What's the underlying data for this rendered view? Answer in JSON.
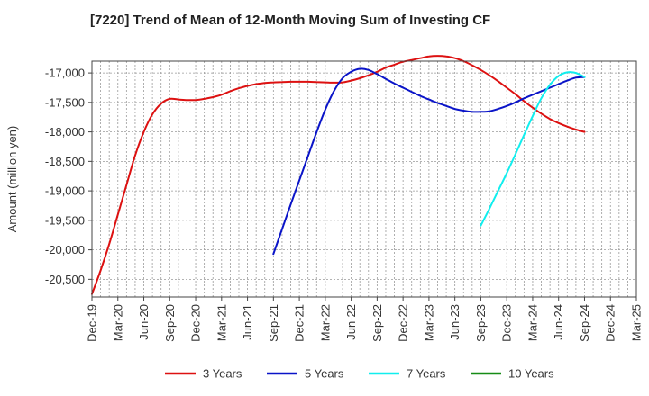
{
  "chart_data": {
    "type": "line",
    "title": "[7220]  Trend of Mean of 12-Month Moving Sum of Investing CF",
    "xlabel": "",
    "ylabel": "Amount (million yen)",
    "ylim": [
      -20800,
      -16800
    ],
    "yticks": [
      -17000,
      -17500,
      -18000,
      -18500,
      -19000,
      -19500,
      -20000,
      -20500
    ],
    "ytick_labels": [
      "-17,000",
      "-17,500",
      "-18,000",
      "-18,500",
      "-19,000",
      "-19,500",
      "-20,000",
      "-20,500"
    ],
    "x_categories": [
      "Dec-19",
      "Mar-20",
      "Jun-20",
      "Sep-20",
      "Dec-20",
      "Mar-21",
      "Jun-21",
      "Sep-21",
      "Dec-21",
      "Mar-22",
      "Jun-22",
      "Sep-22",
      "Dec-22",
      "Mar-23",
      "Jun-23",
      "Sep-23",
      "Dec-23",
      "Mar-24",
      "Jun-24",
      "Sep-24",
      "Dec-24",
      "Mar-25"
    ],
    "grid": true,
    "legend_position": "bottom",
    "series": [
      {
        "name": "3 Years",
        "color": "#dd1111",
        "points": [
          [
            "Dec-19",
            -20750
          ],
          [
            "Jan-20",
            -20350
          ],
          [
            "Feb-20",
            -19900
          ],
          [
            "Mar-20",
            -19400
          ],
          [
            "Apr-20",
            -18900
          ],
          [
            "May-20",
            -18400
          ],
          [
            "Jun-20",
            -18000
          ],
          [
            "Jul-20",
            -17700
          ],
          [
            "Aug-20",
            -17520
          ],
          [
            "Sep-20",
            -17440
          ],
          [
            "Oct-20",
            -17450
          ],
          [
            "Nov-20",
            -17460
          ],
          [
            "Dec-20",
            -17460
          ],
          [
            "Jan-21",
            -17440
          ],
          [
            "Feb-21",
            -17410
          ],
          [
            "Mar-21",
            -17370
          ],
          [
            "Apr-21",
            -17310
          ],
          [
            "May-21",
            -17260
          ],
          [
            "Jun-21",
            -17220
          ],
          [
            "Jul-21",
            -17190
          ],
          [
            "Aug-21",
            -17170
          ],
          [
            "Sep-21",
            -17160
          ],
          [
            "Oct-21",
            -17155
          ],
          [
            "Nov-21",
            -17150
          ],
          [
            "Dec-21",
            -17150
          ],
          [
            "Jan-22",
            -17150
          ],
          [
            "Feb-22",
            -17155
          ],
          [
            "Mar-22",
            -17160
          ],
          [
            "Apr-22",
            -17165
          ],
          [
            "May-22",
            -17160
          ],
          [
            "Jun-22",
            -17130
          ],
          [
            "Jul-22",
            -17090
          ],
          [
            "Aug-22",
            -17040
          ],
          [
            "Sep-22",
            -16980
          ],
          [
            "Oct-22",
            -16910
          ],
          [
            "Nov-22",
            -16860
          ],
          [
            "Dec-22",
            -16810
          ],
          [
            "Jan-23",
            -16780
          ],
          [
            "Feb-23",
            -16750
          ],
          [
            "Mar-23",
            -16720
          ],
          [
            "Apr-23",
            -16710
          ],
          [
            "May-23",
            -16720
          ],
          [
            "Jun-23",
            -16750
          ],
          [
            "Jul-23",
            -16800
          ],
          [
            "Aug-23",
            -16870
          ],
          [
            "Sep-23",
            -16950
          ],
          [
            "Oct-23",
            -17040
          ],
          [
            "Nov-23",
            -17140
          ],
          [
            "Dec-23",
            -17250
          ],
          [
            "Jan-24",
            -17360
          ],
          [
            "Feb-24",
            -17480
          ],
          [
            "Mar-24",
            -17590
          ],
          [
            "Apr-24",
            -17690
          ],
          [
            "May-24",
            -17780
          ],
          [
            "Jun-24",
            -17850
          ],
          [
            "Jul-24",
            -17910
          ],
          [
            "Aug-24",
            -17960
          ],
          [
            "Sep-24",
            -18000
          ]
        ]
      },
      {
        "name": "5 Years",
        "color": "#0a14c8",
        "points": [
          [
            "Sep-21",
            -20070
          ],
          [
            "Oct-21",
            -19650
          ],
          [
            "Nov-21",
            -19230
          ],
          [
            "Dec-21",
            -18820
          ],
          [
            "Jan-22",
            -18410
          ],
          [
            "Feb-22",
            -18000
          ],
          [
            "Mar-22",
            -17620
          ],
          [
            "Apr-22",
            -17310
          ],
          [
            "May-22",
            -17090
          ],
          [
            "Jun-22",
            -16980
          ],
          [
            "Jul-22",
            -16930
          ],
          [
            "Aug-22",
            -16950
          ],
          [
            "Sep-22",
            -17020
          ],
          [
            "Oct-22",
            -17100
          ],
          [
            "Nov-22",
            -17180
          ],
          [
            "Dec-22",
            -17250
          ],
          [
            "Jan-23",
            -17320
          ],
          [
            "Feb-23",
            -17390
          ],
          [
            "Mar-23",
            -17450
          ],
          [
            "Apr-23",
            -17510
          ],
          [
            "May-23",
            -17560
          ],
          [
            "Jun-23",
            -17610
          ],
          [
            "Jul-23",
            -17640
          ],
          [
            "Aug-23",
            -17660
          ],
          [
            "Sep-23",
            -17660
          ],
          [
            "Oct-23",
            -17650
          ],
          [
            "Nov-23",
            -17610
          ],
          [
            "Dec-23",
            -17560
          ],
          [
            "Jan-24",
            -17500
          ],
          [
            "Feb-24",
            -17430
          ],
          [
            "Mar-24",
            -17370
          ],
          [
            "Apr-24",
            -17310
          ],
          [
            "May-24",
            -17250
          ],
          [
            "Jun-24",
            -17190
          ],
          [
            "Jul-24",
            -17130
          ],
          [
            "Aug-24",
            -17080
          ],
          [
            "Sep-24",
            -17070
          ]
        ]
      },
      {
        "name": "7 Years",
        "color": "#11eeee",
        "points": [
          [
            "Sep-23",
            -19590
          ],
          [
            "Oct-23",
            -19300
          ],
          [
            "Nov-23",
            -19000
          ],
          [
            "Dec-23",
            -18700
          ],
          [
            "Jan-24",
            -18380
          ],
          [
            "Feb-24",
            -18050
          ],
          [
            "Mar-24",
            -17730
          ],
          [
            "Apr-24",
            -17430
          ],
          [
            "May-24",
            -17200
          ],
          [
            "Jun-24",
            -17050
          ],
          [
            "Jul-24",
            -16990
          ],
          [
            "Aug-24",
            -17000
          ],
          [
            "Sep-24",
            -17070
          ]
        ]
      },
      {
        "name": "10 Years",
        "color": "#168c16",
        "points": []
      }
    ]
  }
}
